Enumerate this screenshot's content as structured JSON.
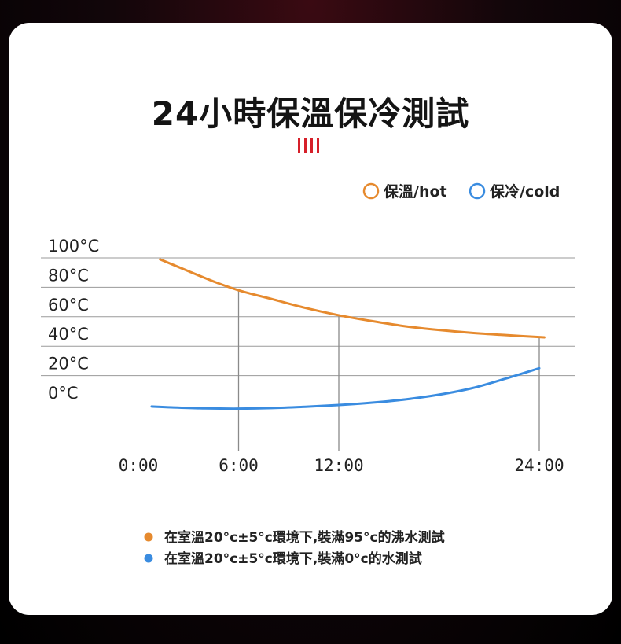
{
  "title": "24小時保溫保冷測試",
  "accent_marks": 4,
  "colors": {
    "hot": "#e68a2e",
    "cold": "#3a8ce0",
    "accent": "#d6202a",
    "grid": "#9a9a9a",
    "text": "#222222"
  },
  "legend": {
    "hot_label": "保溫/hot",
    "cold_label": "保冷/cold"
  },
  "notes": [
    {
      "series": "hot",
      "text": "在室溫20°c±5°c環境下,裝滿95°c的沸水測試"
    },
    {
      "series": "cold",
      "text": "在室溫20°c±5°c環境下,裝滿0°c的水測試"
    }
  ],
  "chart_data": {
    "type": "line",
    "title": "",
    "xlabel": "",
    "ylabel": "",
    "xlim": [
      0,
      24
    ],
    "ylim": [
      0,
      100
    ],
    "y_ticks": [
      {
        "value": 100,
        "label": "100°C"
      },
      {
        "value": 80,
        "label": "80°C"
      },
      {
        "value": 60,
        "label": "60°C"
      },
      {
        "value": 40,
        "label": "40°C"
      },
      {
        "value": 20,
        "label": "20°C"
      },
      {
        "value": 0,
        "label": "0°C"
      }
    ],
    "x_ticks": [
      {
        "value": 0,
        "label": "0:00"
      },
      {
        "value": 6,
        "label": "6:00"
      },
      {
        "value": 12,
        "label": "12:00"
      },
      {
        "value": 24,
        "label": "24:00"
      }
    ],
    "drop_lines": [
      6,
      12,
      24
    ],
    "grid": true,
    "legend_position": "top-right",
    "series": [
      {
        "key": "hot",
        "name": "保溫/hot",
        "x": [
          1.3,
          3,
          4.5,
          6,
          8,
          10,
          12,
          14,
          16,
          18,
          20,
          22,
          24.3
        ],
        "y": [
          99,
          91,
          84,
          78,
          72,
          66,
          61,
          57,
          53.5,
          51,
          49,
          47.5,
          46
        ]
      },
      {
        "key": "cold",
        "name": "保冷/cold",
        "x": [
          0.8,
          2,
          4,
          6,
          8,
          10,
          12,
          14,
          16,
          18,
          20,
          22,
          24
        ],
        "y": [
          -1,
          -1.6,
          -2.3,
          -2.5,
          -2.1,
          -1.2,
          0,
          1.6,
          3.8,
          7,
          11.5,
          18,
          25
        ]
      }
    ]
  }
}
